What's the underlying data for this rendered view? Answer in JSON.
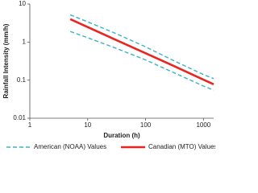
{
  "chart_data": {
    "type": "line",
    "x_label": "Duration (h)",
    "y_label": "Rainfall Intensity (mm/h)",
    "x": [
      5,
      10,
      30,
      100,
      300,
      1000,
      1500
    ],
    "series": [
      {
        "name": "American (NOAA) Values",
        "color": "#3bb3c3",
        "dashed": true,
        "values": [
          5.2,
          3.4,
          1.7,
          0.75,
          0.33,
          0.14,
          0.11
        ]
      },
      {
        "color": "#3bb3c3",
        "dashed": true,
        "values": [
          1.9,
          1.3,
          0.7,
          0.34,
          0.16,
          0.07,
          0.055
        ]
      },
      {
        "name": "Canadian (MTO) Values",
        "color": "#e8251f",
        "dashed": false,
        "values": [
          4,
          2.48,
          1.16,
          0.51,
          0.24,
          0.103,
          0.078
        ]
      }
    ],
    "xlim": [
      1,
      1500
    ],
    "xticks": [
      1,
      10,
      100,
      1000
    ],
    "xscale": "log",
    "ylim": [
      0.01,
      10
    ],
    "yticks": [
      0.01,
      0.1,
      1,
      10
    ],
    "yscale": "log",
    "grid": false,
    "legend": "bottom"
  }
}
